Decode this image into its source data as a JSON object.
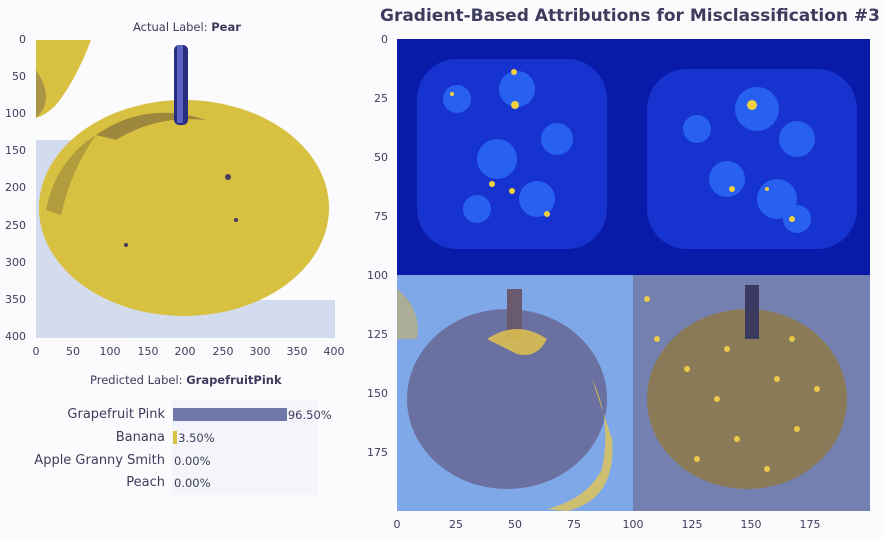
{
  "page": {
    "title": "Gradient-Based Attributions for Misclassification #3",
    "actual_label_prefix": "Actual Label:",
    "actual_label_value": "Pear",
    "predicted_label_prefix": "Predicted Label:",
    "predicted_label_value": "GrapefruitPink"
  },
  "colors": {
    "fruit": "#d8c040",
    "text": "#3e3c5c",
    "bar_primary": "#6e78aa",
    "bar_secondary": "#d8c040",
    "heat_low": "#0a1aa8",
    "heat_mid": "#2b58f0",
    "heat_high": "#f0d040",
    "overlay_blue": "#7fa8e8",
    "overlay_slate": "#7480b0"
  },
  "chart_data": [
    {
      "type": "image",
      "name": "actual-image",
      "xlim": [
        0,
        400
      ],
      "ylim": [
        400,
        0
      ],
      "xticks": [
        "0",
        "50",
        "100",
        "150",
        "200",
        "250",
        "300",
        "350",
        "400"
      ],
      "yticks": [
        "0",
        "50",
        "100",
        "150",
        "200",
        "250",
        "300",
        "350",
        "400"
      ]
    },
    {
      "type": "bar",
      "orientation": "horizontal",
      "categories": [
        "Grapefruit Pink",
        "Banana",
        "Apple Granny Smith",
        "Peach"
      ],
      "values": [
        96.5,
        3.5,
        0.0,
        0.0
      ],
      "value_labels": [
        "96.50%",
        "3.50%",
        "0.00%",
        "0.00%"
      ],
      "xlim": [
        0,
        100
      ]
    },
    {
      "type": "heatmap",
      "name": "attribution-grid",
      "xlim": [
        0,
        200
      ],
      "ylim": [
        200,
        0
      ],
      "xticks": [
        "0",
        "25",
        "50",
        "75",
        "100",
        "125",
        "150",
        "175"
      ],
      "yticks": [
        "0",
        "25",
        "50",
        "75",
        "100",
        "125",
        "150",
        "175"
      ]
    }
  ]
}
